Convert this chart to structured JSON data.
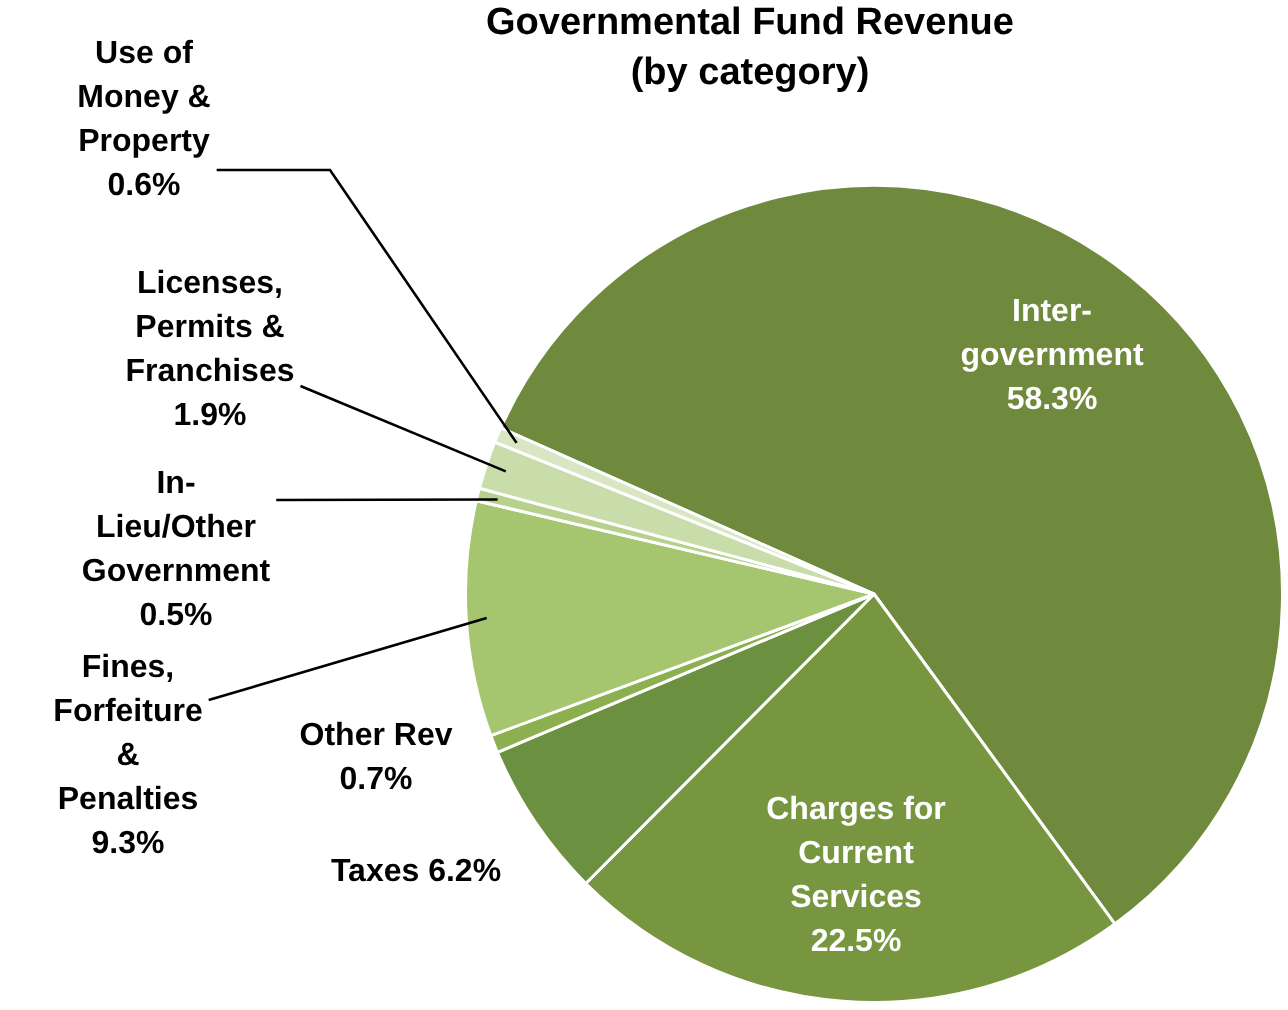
{
  "chart_data": {
    "type": "pie",
    "title": "Governmental Fund Revenue\n(by category)",
    "categories": [
      "Inter-government",
      "Charges for Current Services",
      "Taxes",
      "Other Rev",
      "Fines, Forfeiture & Penalties",
      "In-Lieu/Other Government",
      "Licenses, Permits & Franchises",
      "Use of Money & Property"
    ],
    "values": [
      58.3,
      22.5,
      6.2,
      0.7,
      9.3,
      0.5,
      1.9,
      0.6
    ],
    "value_labels": [
      "58.3%",
      "22.5%",
      "6.2%",
      "0.7%",
      "9.3%",
      "0.5%",
      "1.9%",
      "0.6%"
    ],
    "colors": [
      "#6f8a3c",
      "#77963f",
      "#6b9140",
      "#8cb050",
      "#a5c56e",
      "#b7d08c",
      "#c9ddab",
      "#d8e6c4"
    ],
    "legend": false
  }
}
